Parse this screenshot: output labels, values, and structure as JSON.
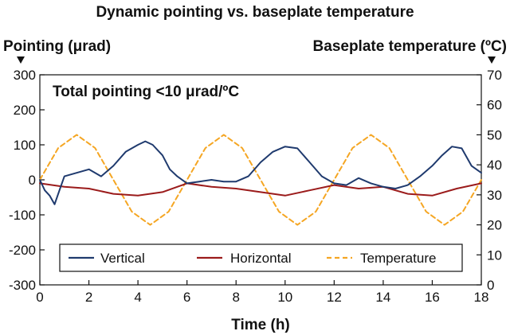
{
  "chart_data": {
    "type": "line",
    "title": "Dynamic pointing vs. baseplate temperature",
    "xlabel": "Time (h)",
    "ylabel_left": "Pointing (μrad)",
    "ylabel_right": "Baseplate temperature (ºC)",
    "annotation": "Total pointing <10 μrad/ºC",
    "xlim": [
      0,
      18
    ],
    "ylim_left": [
      -300,
      300
    ],
    "ylim_right": [
      0,
      70
    ],
    "x_ticks": [
      "0",
      "2",
      "4",
      "6",
      "8",
      "10",
      "12",
      "14",
      "16",
      "18"
    ],
    "y_left_ticks": [
      "300",
      "200",
      "100",
      "0",
      "-100",
      "-200",
      "-300"
    ],
    "y_right_ticks": [
      "70",
      "60",
      "50",
      "40",
      "30",
      "20",
      "10",
      "0"
    ],
    "grid": false,
    "legend_position": "bottom",
    "series": [
      {
        "name": "Vertical",
        "axis": "left",
        "color": "#1f3a6e",
        "style": "solid",
        "x": [
          0,
          0.2,
          0.4,
          0.6,
          0.8,
          1.0,
          1.5,
          2.0,
          2.5,
          3.0,
          3.5,
          4.0,
          4.3,
          4.6,
          5.0,
          5.3,
          5.6,
          6.0,
          6.5,
          7.0,
          7.5,
          8.0,
          8.5,
          9.0,
          9.5,
          10.0,
          10.5,
          11.0,
          11.5,
          12.0,
          12.5,
          13.0,
          13.5,
          14.0,
          14.5,
          15.0,
          15.5,
          16.0,
          16.4,
          16.8,
          17.2,
          17.6,
          18.0
        ],
        "y": [
          0,
          -30,
          -45,
          -70,
          -30,
          10,
          20,
          30,
          10,
          40,
          80,
          100,
          110,
          100,
          70,
          30,
          10,
          -10,
          -5,
          0,
          -5,
          -5,
          10,
          50,
          80,
          95,
          90,
          50,
          10,
          -10,
          -15,
          5,
          -10,
          -20,
          -25,
          -15,
          10,
          40,
          70,
          95,
          90,
          40,
          20
        ]
      },
      {
        "name": "Horizontal",
        "axis": "left",
        "color": "#9b1b1b",
        "style": "solid",
        "x": [
          0,
          1,
          2,
          3,
          4,
          5,
          6,
          7,
          8,
          9,
          10,
          11,
          12,
          13,
          14,
          15,
          16,
          17,
          18
        ],
        "y": [
          -10,
          -20,
          -25,
          -40,
          -45,
          -35,
          -10,
          -20,
          -25,
          -35,
          -45,
          -30,
          -15,
          -25,
          -20,
          -40,
          -45,
          -25,
          -10
        ]
      },
      {
        "name": "Temperature",
        "axis": "right",
        "color": "#f5a623",
        "style": "dashed",
        "x": [
          0,
          0.75,
          1.5,
          2.25,
          3.0,
          3.75,
          4.5,
          5.25,
          6.0,
          6.75,
          7.5,
          8.25,
          9.0,
          9.75,
          10.5,
          11.25,
          12.0,
          12.75,
          13.5,
          14.25,
          15.0,
          15.75,
          16.5,
          17.25,
          18.0
        ],
        "y": [
          35,
          45.6,
          50,
          45.6,
          35,
          24.4,
          20,
          24.4,
          35,
          45.6,
          50,
          45.6,
          35,
          24.4,
          20,
          24.4,
          35,
          45.6,
          50,
          45.6,
          35,
          24.4,
          20,
          24.4,
          35
        ]
      }
    ]
  }
}
